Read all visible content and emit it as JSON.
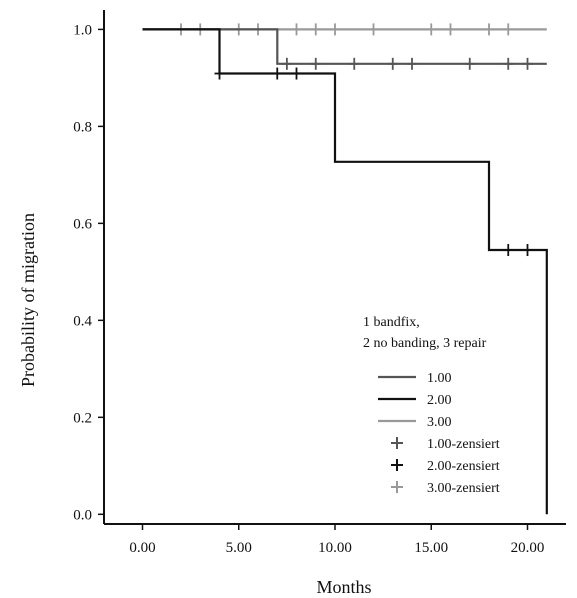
{
  "chart_data": {
    "type": "line",
    "subtype": "kaplan-meier step",
    "xlabel": "Months",
    "ylabel": "Probability of migration",
    "xlim": [
      -2,
      22
    ],
    "ylim": [
      -0.02,
      1.04
    ],
    "xticks": [
      0,
      5,
      10,
      15,
      20
    ],
    "xtick_labels": [
      "0.00",
      "5.00",
      "10.00",
      "15.00",
      "20.00"
    ],
    "yticks": [
      0,
      0.2,
      0.4,
      0.6,
      0.8,
      1.0
    ],
    "ytick_labels": [
      "0.0",
      "0.2",
      "0.4",
      "0.6",
      "0.8",
      "1.0"
    ],
    "grid": false,
    "legend": {
      "title_lines": [
        "1 bandfix,",
        "2 no banding, 3 repair"
      ],
      "placement": "lower-right",
      "entries": [
        {
          "label": "1.00",
          "kind": "line",
          "series": 0
        },
        {
          "label": "2.00",
          "kind": "line",
          "series": 1
        },
        {
          "label": "3.00",
          "kind": "line",
          "series": 2
        },
        {
          "label": "1.00-zensiert",
          "kind": "censor",
          "series": 0
        },
        {
          "label": "2.00-zensiert",
          "kind": "censor",
          "series": 1
        },
        {
          "label": "3.00-zensiert",
          "kind": "censor",
          "series": 2
        }
      ]
    },
    "series": [
      {
        "name": "1.00",
        "color": "#555555",
        "steps": [
          [
            0,
            1.0
          ],
          [
            7,
            1.0
          ],
          [
            7,
            0.929
          ],
          [
            21,
            0.929
          ]
        ],
        "censored": [
          [
            7.5,
            0.929
          ],
          [
            9,
            0.929
          ],
          [
            11,
            0.929
          ],
          [
            13,
            0.929
          ],
          [
            14,
            0.929
          ],
          [
            17,
            0.929
          ],
          [
            19,
            0.929
          ],
          [
            20,
            0.929
          ]
        ]
      },
      {
        "name": "2.00",
        "color": "#111111",
        "steps": [
          [
            0,
            1.0
          ],
          [
            4,
            1.0
          ],
          [
            4,
            0.909
          ],
          [
            10,
            0.909
          ],
          [
            10,
            0.727
          ],
          [
            18,
            0.727
          ],
          [
            18,
            0.545
          ],
          [
            21,
            0.545
          ],
          [
            21,
            0.0
          ]
        ],
        "censored": [
          [
            4,
            0.909
          ],
          [
            7,
            0.909
          ],
          [
            8,
            0.909
          ],
          [
            19,
            0.545
          ],
          [
            20,
            0.545
          ]
        ]
      },
      {
        "name": "3.00",
        "color": "#999999",
        "steps": [
          [
            0,
            1.0
          ],
          [
            21,
            1.0
          ]
        ],
        "censored": [
          [
            2,
            1.0
          ],
          [
            3,
            1.0
          ],
          [
            5,
            1.0
          ],
          [
            6,
            1.0
          ],
          [
            8,
            1.0
          ],
          [
            9,
            1.0
          ],
          [
            10,
            1.0
          ],
          [
            12,
            1.0
          ],
          [
            15,
            1.0
          ],
          [
            16,
            1.0
          ],
          [
            18,
            1.0
          ],
          [
            19,
            1.0
          ]
        ]
      }
    ]
  }
}
